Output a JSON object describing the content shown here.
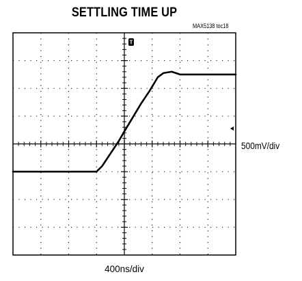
{
  "chart_data": {
    "type": "line",
    "title": "SETTLING TIME UP",
    "figure_id": "MAX5138 toc18",
    "y_scale_label": "500mV/div",
    "x_scale_label": "400ns/div",
    "trigger_marker": "T",
    "divisions": {
      "x": 8,
      "y": 8
    },
    "xlim": [
      0,
      8
    ],
    "ylim": [
      -4,
      4
    ],
    "grid": true,
    "series": [
      {
        "x": [
          0,
          3.0,
          3.2,
          3.5,
          3.8,
          4.0,
          4.3,
          4.6,
          4.9,
          5.2,
          5.4,
          5.7,
          6.0,
          7.0,
          8.0
        ],
        "values": [
          -1.0,
          -1.0,
          -0.8,
          -0.35,
          0.1,
          0.45,
          0.95,
          1.45,
          1.9,
          2.4,
          2.55,
          2.6,
          2.5,
          2.5,
          2.5
        ]
      }
    ]
  }
}
